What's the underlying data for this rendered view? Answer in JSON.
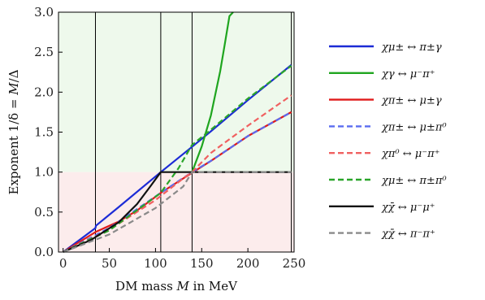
{
  "chart_data": {
    "type": "line",
    "xlabel": "DM mass 𝑀 in MeV",
    "ylabel": "Exponent 1/δ = 𝑀/Δ",
    "xlim": [
      -5,
      250
    ],
    "ylim": [
      0,
      3.0
    ],
    "xticks": [
      "0",
      "50",
      "100",
      "150",
      "200",
      "250"
    ],
    "xtick_values": [
      0,
      50,
      100,
      150,
      200,
      250
    ],
    "yticks": [
      "0.0",
      "0.5",
      "1.0",
      "1.5",
      "2.0",
      "2.5",
      "3.0"
    ],
    "ytick_values": [
      0,
      0.5,
      1.0,
      1.5,
      2.0,
      2.5,
      3.0
    ],
    "regions": [
      {
        "y_from": 1.0,
        "y_to": 3.0,
        "color": "#eef9ec"
      },
      {
        "y_from": 0.0,
        "y_to": 1.0,
        "color": "#fcecec"
      }
    ],
    "vertical_lines": [
      35,
      105.7,
      139.6,
      247
    ],
    "series": [
      {
        "name": "χμ± ↔ π±γ",
        "color": "#1c2bd6",
        "dash": "solid",
        "x": [
          0,
          20,
          35,
          35.5,
          60,
          105.7,
          140,
          160,
          200,
          247
        ],
        "y": [
          0,
          0.17,
          0.3,
          0.33,
          0.56,
          1.0,
          1.32,
          1.51,
          1.9,
          2.34
        ]
      },
      {
        "name": "χγ ↔ μ⁻π⁺",
        "color": "#1fa51f",
        "dash": "solid",
        "x": [
          139.6,
          150,
          160,
          170,
          175,
          180,
          184
        ],
        "y": [
          1.0,
          1.32,
          1.71,
          2.26,
          2.6,
          2.95,
          3.0
        ]
      },
      {
        "name": "χπ± ↔ μ±γ",
        "color": "#e01b1b",
        "dash": "solid",
        "x": [
          0,
          35,
          60,
          80,
          105.7,
          130,
          139.6,
          160,
          200,
          247
        ],
        "y": [
          0,
          0.25,
          0.38,
          0.52,
          0.74,
          0.92,
          0.99,
          1.14,
          1.45,
          1.75
        ]
      },
      {
        "name": "χπ± ↔ μ±π⁰",
        "color": "#5a6cf0",
        "dash": "dashed",
        "x": [
          0,
          50,
          105.7,
          139.6,
          160,
          200,
          247
        ],
        "y": [
          0,
          0.3,
          0.74,
          1.0,
          1.14,
          1.45,
          1.75
        ]
      },
      {
        "name": "χπ⁰ ↔ μ⁻π⁺",
        "color": "#f06060",
        "dash": "dashed",
        "x": [
          0,
          50,
          100,
          130,
          139.6,
          160,
          200,
          247
        ],
        "y": [
          0,
          0.28,
          0.65,
          0.92,
          1.0,
          1.24,
          1.58,
          1.96
        ]
      },
      {
        "name": "χμ± ↔ π±π⁰",
        "color": "#2aa52a",
        "dash": "dashed",
        "x": [
          0,
          50,
          105.7,
          125,
          139.6,
          160,
          200,
          247
        ],
        "y": [
          0,
          0.27,
          0.74,
          1.05,
          1.34,
          1.53,
          1.92,
          2.33
        ]
      },
      {
        "name": "χχ̄ ↔ μ⁻μ⁺",
        "color": "#111111",
        "dash": "solid",
        "x": [
          0,
          30,
          60,
          80,
          95,
          105.7,
          139.6,
          200,
          247
        ],
        "y": [
          0,
          0.15,
          0.37,
          0.6,
          0.83,
          1.0,
          1.0,
          1.0,
          1.0
        ]
      },
      {
        "name": "χχ̄ ↔ π⁻π⁺",
        "color": "#8a8a8a",
        "dash": "dashed",
        "x": [
          0,
          50,
          100,
          130,
          139.6,
          200,
          247
        ],
        "y": [
          0,
          0.22,
          0.55,
          0.82,
          1.0,
          1.0,
          1.0
        ]
      }
    ],
    "legend_position": "right"
  }
}
